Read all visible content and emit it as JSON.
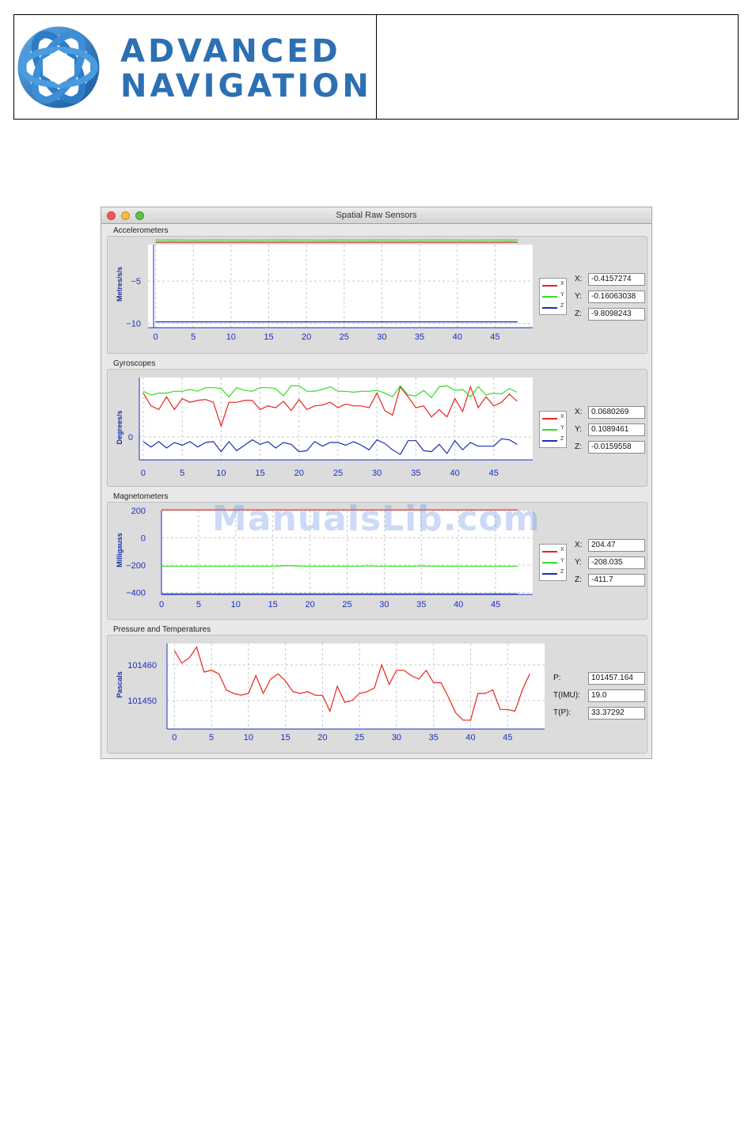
{
  "header": {
    "logo_line1": "ADVANCED",
    "logo_line2": "NAVIGATION",
    "brand_color": "#2d6fb3"
  },
  "window": {
    "title": "Spatial Raw Sensors",
    "controls": [
      "close-button",
      "minimize-button",
      "zoom-button"
    ]
  },
  "sections": {
    "accel": {
      "title": "Accelerometers",
      "fields": [
        {
          "label": "X:",
          "value": "-0.4157274"
        },
        {
          "label": "Y:",
          "value": "-0.16063038"
        },
        {
          "label": "Z:",
          "value": "-9.8098243"
        }
      ]
    },
    "gyro": {
      "title": "Gyroscopes",
      "fields": [
        {
          "label": "X:",
          "value": "0.0680269"
        },
        {
          "label": "Y:",
          "value": "0.1089461"
        },
        {
          "label": "Z:",
          "value": "-0.0159558"
        }
      ]
    },
    "mag": {
      "title": "Magnetometers",
      "fields": [
        {
          "label": "X:",
          "value": "204.47"
        },
        {
          "label": "Y:",
          "value": "-208.035"
        },
        {
          "label": "Z:",
          "value": "-411.7"
        }
      ]
    },
    "press": {
      "title": "Pressure and Temperatures",
      "fields": [
        {
          "label": "P:",
          "value": "101457.164"
        },
        {
          "label": "T(IMU):",
          "value": "19.0"
        },
        {
          "label": "T(P):",
          "value": "33.37292"
        }
      ]
    }
  },
  "legend": {
    "x": "X",
    "y": "Y",
    "z": "Z"
  },
  "series_colors": {
    "x": "#e8241c",
    "y": "#33dd22",
    "z": "#1a2fb5"
  },
  "watermark": "ManualsLib.com",
  "chart_data": [
    {
      "id": "accel",
      "type": "line",
      "ylabel": "Metres/s/s",
      "xlim": [
        -1,
        50
      ],
      "ylim": [
        -10.5,
        -0.7
      ],
      "xticks": [
        0,
        5,
        10,
        15,
        20,
        25,
        30,
        35,
        40,
        45
      ],
      "yticks": [
        -5,
        -10
      ],
      "ytick_labels": [
        "−5",
        "−10"
      ],
      "grid": true,
      "legend_placement": "right",
      "series": [
        {
          "name": "X",
          "key": "x",
          "values": [
            -0.42,
            -0.42,
            -0.41,
            -0.42,
            -0.42,
            -0.42,
            -0.41,
            -0.42,
            -0.42,
            -0.42,
            -0.42,
            -0.42,
            -0.41,
            -0.42,
            -0.42,
            -0.42,
            -0.42,
            -0.41,
            -0.42,
            -0.42,
            -0.42,
            -0.42,
            -0.42,
            -0.41,
            -0.42,
            -0.42,
            -0.42,
            -0.42,
            -0.42,
            -0.41,
            -0.42,
            -0.42,
            -0.42,
            -0.42,
            -0.42,
            -0.41,
            -0.42,
            -0.42,
            -0.42,
            -0.42,
            -0.42,
            -0.41,
            -0.42,
            -0.42,
            -0.42,
            -0.42,
            -0.42,
            -0.41,
            -0.42
          ]
        },
        {
          "name": "Y",
          "key": "y",
          "values": [
            -0.16,
            -0.16,
            -0.15,
            -0.16,
            -0.16,
            -0.17,
            -0.16,
            -0.16,
            -0.15,
            -0.16,
            -0.16,
            -0.16,
            -0.16,
            -0.17,
            -0.16,
            -0.16,
            -0.16,
            -0.15,
            -0.16,
            -0.16,
            -0.16,
            -0.16,
            -0.17,
            -0.16,
            -0.15,
            -0.16,
            -0.16,
            -0.16,
            -0.16,
            -0.16,
            -0.15,
            -0.16,
            -0.16,
            -0.17,
            -0.16,
            -0.16,
            -0.16,
            -0.15,
            -0.16,
            -0.16,
            -0.16,
            -0.16,
            -0.17,
            -0.16,
            -0.16,
            -0.16,
            -0.15,
            -0.16,
            -0.16
          ]
        },
        {
          "name": "Z",
          "key": "z",
          "values": [
            -9.81,
            -9.81,
            -9.81,
            -9.81,
            -9.81,
            -9.81,
            -9.81,
            -9.81,
            -9.81,
            -9.81,
            -9.81,
            -9.81,
            -9.81,
            -9.81,
            -9.81,
            -9.81,
            -9.81,
            -9.81,
            -9.81,
            -9.81,
            -9.81,
            -9.81,
            -9.81,
            -9.81,
            -9.81,
            -9.81,
            -9.81,
            -9.81,
            -9.81,
            -9.81,
            -9.81,
            -9.81,
            -9.81,
            -9.81,
            -9.81,
            -9.81,
            -9.81,
            -9.81,
            -9.81,
            -9.81,
            -9.81,
            -9.81,
            -9.81,
            -9.81,
            -9.81,
            -9.81,
            -9.81,
            -9.81,
            -9.81
          ]
        }
      ]
    },
    {
      "id": "gyro",
      "type": "line",
      "ylabel": "Degrees/s",
      "xlim": [
        -0.5,
        50
      ],
      "ylim": [
        -0.25,
        0.65
      ],
      "xticks": [
        0,
        5,
        10,
        15,
        20,
        25,
        30,
        35,
        40,
        45
      ],
      "yticks": [
        0
      ],
      "ytick_labels": [
        "0"
      ],
      "grid": true,
      "legend_placement": "right",
      "series": [
        {
          "name": "X",
          "key": "x",
          "values": [
            0.48,
            0.34,
            0.3,
            0.44,
            0.3,
            0.42,
            0.38,
            0.4,
            0.41,
            0.38,
            0.12,
            0.38,
            0.38,
            0.4,
            0.4,
            0.3,
            0.34,
            0.32,
            0.39,
            0.29,
            0.41,
            0.3,
            0.34,
            0.35,
            0.38,
            0.32,
            0.36,
            0.34,
            0.34,
            0.32,
            0.48,
            0.29,
            0.24,
            0.55,
            0.44,
            0.32,
            0.34,
            0.22,
            0.3,
            0.22,
            0.42,
            0.28,
            0.55,
            0.32,
            0.44,
            0.34,
            0.38,
            0.47,
            0.39
          ]
        },
        {
          "name": "Y",
          "key": "y",
          "values": [
            0.5,
            0.46,
            0.48,
            0.48,
            0.5,
            0.5,
            0.52,
            0.5,
            0.54,
            0.54,
            0.53,
            0.44,
            0.54,
            0.51,
            0.5,
            0.54,
            0.54,
            0.53,
            0.45,
            0.56,
            0.56,
            0.5,
            0.5,
            0.52,
            0.55,
            0.5,
            0.5,
            0.49,
            0.5,
            0.5,
            0.51,
            0.48,
            0.44,
            0.56,
            0.46,
            0.45,
            0.51,
            0.43,
            0.55,
            0.56,
            0.51,
            0.52,
            0.44,
            0.55,
            0.46,
            0.48,
            0.47,
            0.53,
            0.49
          ]
        },
        {
          "name": "Z",
          "key": "z",
          "values": [
            -0.05,
            -0.11,
            -0.05,
            -0.12,
            -0.06,
            -0.09,
            -0.05,
            -0.11,
            -0.06,
            -0.05,
            -0.16,
            -0.05,
            -0.15,
            -0.09,
            -0.03,
            -0.08,
            -0.05,
            -0.12,
            -0.06,
            -0.08,
            -0.16,
            -0.15,
            -0.05,
            -0.1,
            -0.06,
            -0.06,
            -0.09,
            -0.05,
            -0.09,
            -0.14,
            -0.03,
            -0.07,
            -0.14,
            -0.19,
            -0.04,
            -0.04,
            -0.15,
            -0.16,
            -0.08,
            -0.18,
            -0.04,
            -0.14,
            -0.06,
            -0.1,
            -0.1,
            -0.1,
            -0.02,
            -0.03,
            -0.08
          ]
        }
      ]
    },
    {
      "id": "mag",
      "type": "line",
      "ylabel": "Milligauss",
      "xlim": [
        0,
        50
      ],
      "ylim": [
        -415,
        200
      ],
      "xticks": [
        0,
        5,
        10,
        15,
        20,
        25,
        30,
        35,
        40,
        45
      ],
      "yticks": [
        200,
        0,
        -200,
        -400
      ],
      "ytick_labels": [
        "200",
        "0",
        "−200",
        "−400"
      ],
      "grid": true,
      "legend_placement": "right",
      "series": [
        {
          "name": "X",
          "key": "x",
          "values": [
            204.5,
            204.5,
            204.5,
            204.5,
            204.5,
            204.5,
            204.5,
            204.5,
            204.5,
            204.5,
            204.5,
            204.5,
            204.5,
            204.5,
            204.5,
            204.5,
            204.5,
            204.5,
            204.5,
            204.5,
            204.5,
            204.5,
            204.5,
            204.5,
            204.5,
            204.5,
            204.5,
            204.5,
            204.5,
            204.5,
            204.5,
            204.5,
            204.5,
            204.5,
            204.5,
            204.5,
            204.5,
            204.5,
            204.5,
            204.5,
            204.5,
            204.5,
            204.5,
            204.5,
            204.5,
            204.5,
            204.5,
            204.5,
            204.5
          ]
        },
        {
          "name": "Y",
          "key": "y",
          "values": [
            -208,
            -208,
            -208,
            -208,
            -208,
            -208,
            -208,
            -208,
            -208,
            -208,
            -208,
            -208,
            -208,
            -208,
            -208,
            -208,
            -206,
            -203,
            -206,
            -208,
            -208,
            -208,
            -208,
            -208,
            -208,
            -208,
            -208,
            -208,
            -205,
            -208,
            -208,
            -208,
            -208,
            -208,
            -208,
            -205,
            -208,
            -208,
            -208,
            -208,
            -208,
            -208,
            -208,
            -208,
            -208,
            -208,
            -208,
            -208,
            -208
          ]
        },
        {
          "name": "Z",
          "key": "z",
          "values": [
            -411.7,
            -411.7,
            -411.7,
            -411.7,
            -411.7,
            -411.7,
            -411.7,
            -411.7,
            -411.7,
            -411.7,
            -411.7,
            -411.7,
            -411.7,
            -411.7,
            -411.7,
            -411.7,
            -411.7,
            -411.7,
            -411.7,
            -411.7,
            -411.7,
            -411.7,
            -411.7,
            -411.7,
            -411.7,
            -411.7,
            -411.7,
            -411.7,
            -411.7,
            -411.7,
            -411.7,
            -411.7,
            -411.7,
            -411.7,
            -411.7,
            -411.7,
            -411.7,
            -411.7,
            -411.7,
            -411.7,
            -411.7,
            -411.7,
            -411.7,
            -411.7,
            -411.7,
            -411.7,
            -411.7,
            -411.7,
            -411.7
          ]
        }
      ]
    },
    {
      "id": "press",
      "type": "line",
      "ylabel": "Pascals",
      "xlim": [
        -1,
        50
      ],
      "ylim": [
        101442,
        101466
      ],
      "xticks": [
        0,
        5,
        10,
        15,
        20,
        25,
        30,
        35,
        40,
        45
      ],
      "yticks": [
        101460,
        101450
      ],
      "ytick_labels": [
        "101460",
        "101450"
      ],
      "grid": true,
      "legend_placement": "none",
      "series": [
        {
          "name": "P",
          "key": "x",
          "values": [
            101464.0,
            101460.5,
            101462.0,
            101465.0,
            101458.0,
            101458.5,
            101457.5,
            101453.0,
            101452.0,
            101451.5,
            101452.0,
            101457.0,
            101452.0,
            101456.0,
            101457.5,
            101455.5,
            101452.5,
            101452.0,
            101452.5,
            101451.5,
            101451.5,
            101447.0,
            101454.0,
            101449.5,
            101450.0,
            101452.0,
            101452.5,
            101453.5,
            101460.0,
            101454.5,
            101458.5,
            101458.5,
            101457.0,
            101456.0,
            101458.5,
            101455.0,
            101455.0,
            101451.0,
            101446.5,
            101444.5,
            101444.5,
            101452.0,
            101452.0,
            101453.0,
            101447.5,
            101447.5,
            101447.0,
            101453.0,
            101457.5
          ]
        }
      ]
    }
  ]
}
